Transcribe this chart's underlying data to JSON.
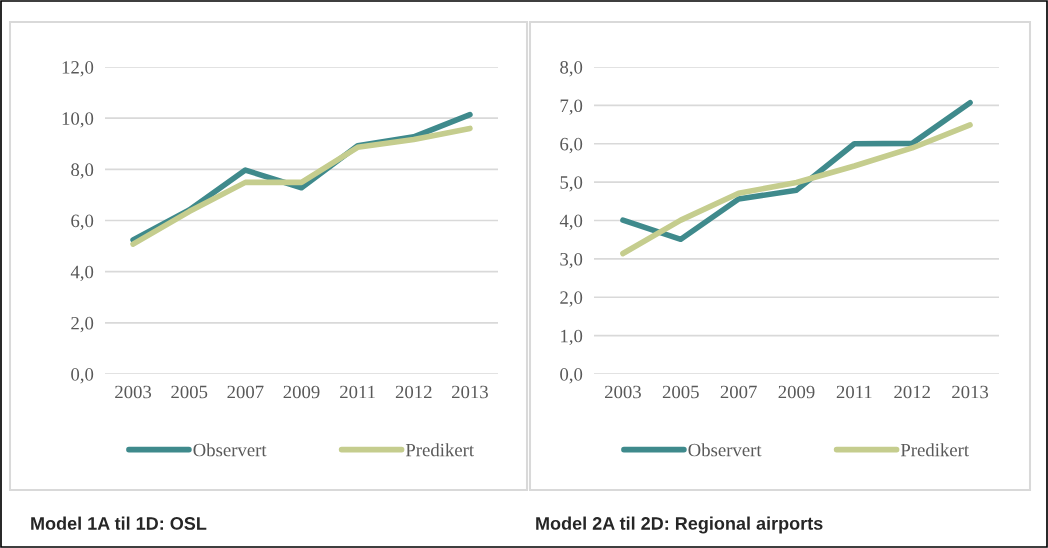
{
  "chart_data": [
    {
      "type": "line",
      "title": "Model 1A til 1D: OSL",
      "categories": [
        "2003",
        "2005",
        "2007",
        "2009",
        "2011",
        "2012",
        "2013"
      ],
      "series": [
        {
          "name": "Observert",
          "color": "#3f8a8c",
          "values": [
            5.24,
            6.41,
            7.97,
            7.28,
            8.92,
            9.27,
            10.14
          ]
        },
        {
          "name": "Predikert",
          "color": "#c5cd8e",
          "values": [
            5.08,
            6.35,
            7.49,
            7.49,
            8.86,
            9.17,
            9.6
          ]
        }
      ],
      "ylim": [
        0,
        12
      ],
      "yticks": [
        {
          "value": 0,
          "label": "0,0"
        },
        {
          "value": 2,
          "label": "2,0"
        },
        {
          "value": 4,
          "label": "4,0"
        },
        {
          "value": 6,
          "label": "6,0"
        },
        {
          "value": 8,
          "label": "8,0"
        },
        {
          "value": 10,
          "label": "10,0"
        },
        {
          "value": 12,
          "label": "12,0"
        }
      ],
      "grid": "y",
      "legend": "bottom",
      "marker": "none",
      "line_style": "solid"
    },
    {
      "type": "line",
      "title": "Model 2A til 2D: Regional airports",
      "categories": [
        "2003",
        "2005",
        "2007",
        "2009",
        "2011",
        "2012",
        "2013"
      ],
      "series": [
        {
          "name": "Observert",
          "color": "#3f8a8c",
          "values": [
            4.01,
            3.51,
            4.56,
            4.79,
            6.0,
            6.01,
            7.07
          ]
        },
        {
          "name": "Predikert",
          "color": "#c5cd8e",
          "values": [
            3.14,
            4.01,
            4.71,
            4.99,
            5.42,
            5.89,
            6.49
          ]
        }
      ],
      "ylim": [
        0,
        8
      ],
      "yticks": [
        {
          "value": 0,
          "label": "0,0"
        },
        {
          "value": 1,
          "label": "1,0"
        },
        {
          "value": 2,
          "label": "2,0"
        },
        {
          "value": 3,
          "label": "3,0"
        },
        {
          "value": 4,
          "label": "4,0"
        },
        {
          "value": 5,
          "label": "5,0"
        },
        {
          "value": 6,
          "label": "6,0"
        },
        {
          "value": 7,
          "label": "7,0"
        },
        {
          "value": 8,
          "label": "8,0"
        }
      ],
      "grid": "y",
      "legend": "bottom",
      "marker": "none",
      "line_style": "solid"
    }
  ]
}
